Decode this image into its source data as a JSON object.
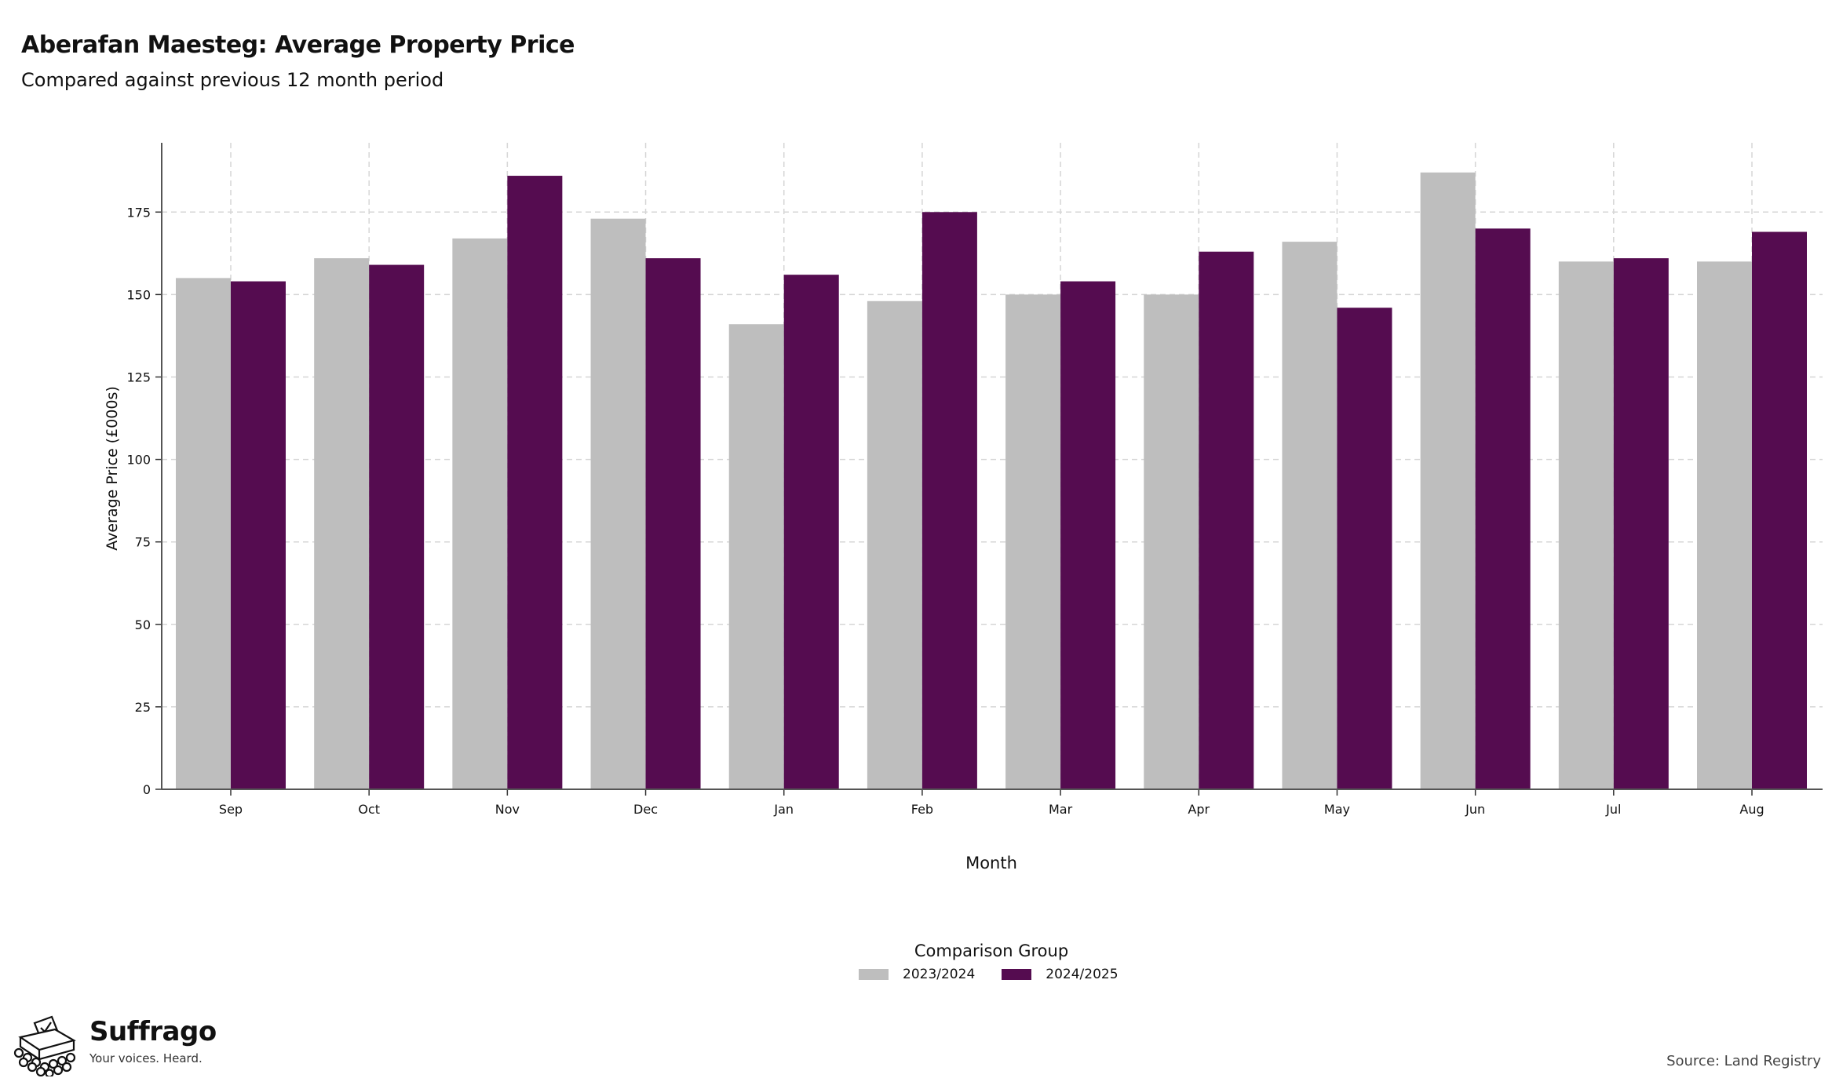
{
  "header": {
    "title": "Aberafan Maesteg: Average Property Price",
    "subtitle": "Compared against previous 12 month period"
  },
  "chart_data": {
    "type": "bar",
    "xlabel": "Month",
    "ylabel": "Average Price (£000s)",
    "categories": [
      "Sep",
      "Oct",
      "Nov",
      "Dec",
      "Jan",
      "Feb",
      "Mar",
      "Apr",
      "May",
      "Jun",
      "Jul",
      "Aug"
    ],
    "series": [
      {
        "name": "2023/2024",
        "color": "#bebebe",
        "values": [
          155,
          161,
          167,
          173,
          141,
          148,
          150,
          150,
          166,
          187,
          160,
          160
        ]
      },
      {
        "name": "2024/2025",
        "color": "#550c50",
        "values": [
          154,
          159,
          186,
          161,
          156,
          175,
          154,
          163,
          146,
          170,
          161,
          169
        ]
      }
    ],
    "ylim": [
      0,
      196
    ],
    "yticks": [
      0,
      25,
      50,
      75,
      100,
      125,
      150,
      175
    ],
    "grid": true,
    "legend_position": "bottom"
  },
  "legend": {
    "title": "Comparison Group",
    "items": [
      {
        "label": "2023/2024",
        "color": "#bebebe"
      },
      {
        "label": "2024/2025",
        "color": "#550c50"
      }
    ]
  },
  "branding": {
    "name": "Suffrago",
    "tagline": "Your voices. Heard.",
    "icon": "ballot-box-icon"
  },
  "footer": {
    "source": "Source: Land Registry"
  }
}
